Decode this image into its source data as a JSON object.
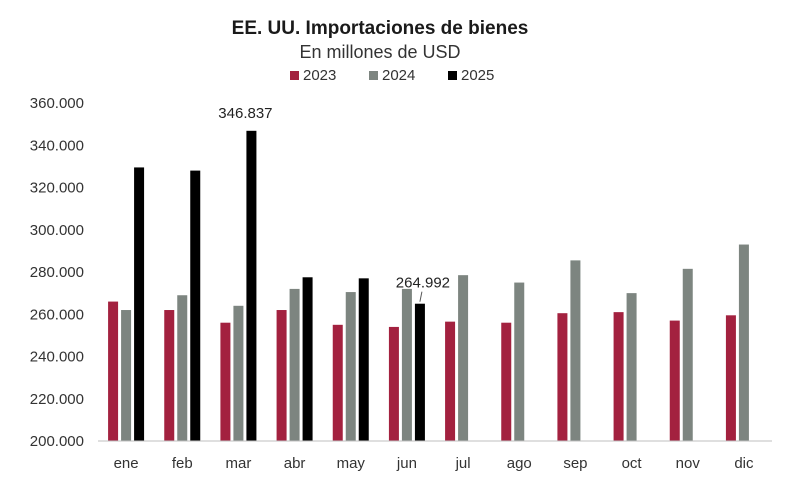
{
  "chart_data": {
    "type": "bar",
    "title": "EE. UU. Importaciones de bienes",
    "subtitle": "En millones de USD",
    "categories": [
      "ene",
      "feb",
      "mar",
      "abr",
      "may",
      "jun",
      "jul",
      "ago",
      "sep",
      "oct",
      "nov",
      "dic"
    ],
    "series": [
      {
        "name": "2023",
        "color": "#a3213f",
        "values": [
          266000,
          262000,
          256000,
          262000,
          255000,
          254000,
          256500,
          256000,
          260500,
          261000,
          257000,
          259500
        ]
      },
      {
        "name": "2024",
        "color": "#7d8580",
        "values": [
          262000,
          269000,
          264000,
          272000,
          270500,
          272000,
          278500,
          275000,
          285500,
          270000,
          281500,
          293000
        ]
      },
      {
        "name": "2025",
        "color": "#000000",
        "values": [
          329500,
          328000,
          346837,
          277500,
          277000,
          264992,
          null,
          null,
          null,
          null,
          null,
          null
        ]
      }
    ],
    "ylim": [
      200000,
      360000
    ],
    "yticks": [
      "200.000",
      "220.000",
      "240.000",
      "260.000",
      "280.000",
      "300.000",
      "320.000",
      "340.000",
      "360.000"
    ],
    "annotations": [
      {
        "series": "2025",
        "category": "mar",
        "text": "346.837"
      },
      {
        "series": "2025",
        "category": "jun",
        "text": "264.992"
      }
    ],
    "legend_position": "top-center",
    "grid": false
  }
}
